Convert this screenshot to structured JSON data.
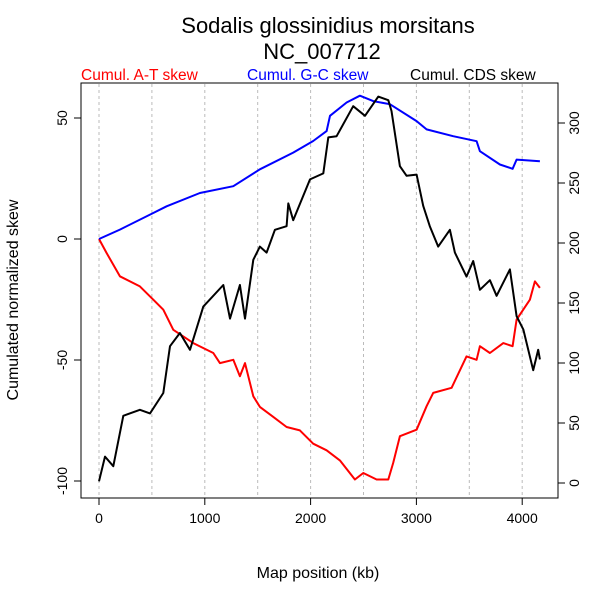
{
  "chart_data": {
    "type": "line",
    "title": "Sodalis glossinidius morsitans",
    "subtitle": "NC_007712",
    "xlabel": "Map position (kb)",
    "ylabel": "Cumulated normalized skew",
    "xlim": [
      0,
      4200
    ],
    "ylim_left": [
      -100,
      60
    ],
    "ylim_right": [
      0,
      320
    ],
    "x_ticks": [
      0,
      1000,
      2000,
      3000,
      4000
    ],
    "y_ticks_left": [
      -100,
      -50,
      0,
      50
    ],
    "y_ticks_right": [
      0,
      50,
      100,
      150,
      200,
      250,
      300
    ],
    "grid": "vertical dashed every 500 kb",
    "legend_placement": "top",
    "series": [
      {
        "name": "Cumul. A-T skew",
        "color": "#ff0000",
        "axis": "left",
        "x": [
          0,
          72,
          198,
          387,
          513,
          608,
          702,
          891,
          1080,
          1143,
          1269,
          1332,
          1380,
          1458,
          1521,
          1647,
          1773,
          1899,
          2025,
          2151,
          2277,
          2419,
          2498,
          2624,
          2734,
          2781,
          2844,
          3002,
          3096,
          3159,
          3333,
          3474,
          3569,
          3600,
          3695,
          3821,
          3909,
          3947,
          4073,
          4120,
          4167
        ],
        "y": [
          0,
          -5.8,
          -15.4,
          -19.6,
          -25.1,
          -29.2,
          -37.5,
          -43,
          -47.1,
          -51.3,
          -49.9,
          -56.7,
          -51.3,
          -65,
          -69.4,
          -73.5,
          -77.7,
          -79.1,
          -84.6,
          -87.3,
          -91.5,
          -99.4,
          -96.7,
          -99.4,
          -99.4,
          -92.5,
          -81.5,
          -78.8,
          -69.1,
          -63.6,
          -61.5,
          -48.5,
          -49.9,
          -44.3,
          -47.1,
          -43,
          -44.3,
          -33.3,
          -25.1,
          -17.5,
          -20.2
        ]
      },
      {
        "name": "Cumul. G-C skew",
        "color": "#0000ff",
        "axis": "left",
        "x": [
          0,
          198,
          510,
          639,
          954,
          1269,
          1521,
          1836,
          2025,
          2151,
          2183,
          2340,
          2466,
          2592,
          2750,
          3002,
          3096,
          3348,
          3569,
          3600,
          3789,
          3909,
          3947,
          4167
        ],
        "y": [
          0,
          3.9,
          10.7,
          13.5,
          19,
          21.8,
          28.8,
          35.7,
          40.5,
          44.6,
          50.9,
          56.4,
          59.2,
          57,
          55.7,
          48.7,
          45.3,
          42.5,
          40.4,
          36.3,
          30.8,
          29,
          32.8,
          32.1
        ]
      },
      {
        "name": "Cumul. CDS skew",
        "color": "#000000",
        "axis": "right",
        "x": [
          0,
          57,
          135,
          230,
          387,
          482,
          608,
          671,
          765,
          860,
          986,
          1175,
          1238,
          1332,
          1380,
          1458,
          1521,
          1584,
          1663,
          1773,
          1789,
          1836,
          1994,
          2120,
          2167,
          2246,
          2403,
          2514,
          2640,
          2734,
          2765,
          2844,
          2907,
          3002,
          3064,
          3127,
          3206,
          3317,
          3364,
          3474,
          3537,
          3600,
          3695,
          3758,
          3884,
          3947,
          4010,
          4104,
          4151,
          4167
        ],
        "y": [
          1.4,
          22,
          14,
          56,
          61,
          58,
          75,
          114,
          125,
          111,
          147,
          165,
          137,
          165,
          137,
          186,
          197,
          192,
          211,
          214,
          233,
          219,
          253,
          258,
          288,
          289,
          314,
          306,
          322,
          319,
          310,
          264,
          256,
          257,
          231,
          214,
          197,
          211,
          192,
          172,
          185,
          161,
          169,
          156,
          178,
          139,
          128,
          94,
          111,
          103
        ]
      }
    ]
  }
}
